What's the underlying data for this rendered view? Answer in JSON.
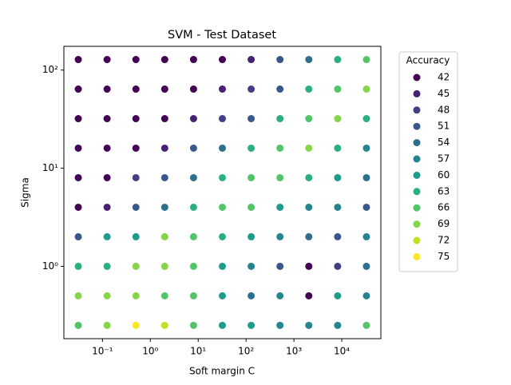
{
  "chart_data": {
    "type": "scatter",
    "title": "SVM - Test Dataset",
    "x_label": "Soft margin C",
    "y_label": "Sigma",
    "xscale": "log",
    "yscale": "log",
    "xlim": [
      0.015625,
      65536
    ],
    "ylim": [
      0.183,
      174.6
    ],
    "xticks": [
      {
        "value": 0.1,
        "label": "10⁻¹"
      },
      {
        "value": 1,
        "label": "10⁰"
      },
      {
        "value": 10,
        "label": "10¹"
      },
      {
        "value": 100,
        "label": "10²"
      },
      {
        "value": 1000,
        "label": "10³"
      },
      {
        "value": 10000,
        "label": "10⁴"
      }
    ],
    "yticks": [
      {
        "value": 1,
        "label": "10⁰"
      },
      {
        "value": 10,
        "label": "10¹"
      },
      {
        "value": 100,
        "label": "10²"
      }
    ],
    "legend_title": "Accuracy",
    "legend_position": "outside-right",
    "series": [
      {
        "name": "42",
        "color": "#440154",
        "x": [
          0.03125,
          0.125,
          0.5,
          2,
          8,
          32,
          0.03125,
          0.125,
          0.5,
          2,
          8,
          0.03125,
          0.125,
          0.5,
          2,
          0.03125,
          0.125,
          0.5,
          0.03125,
          0.125,
          0.03125,
          2048,
          2048
        ],
        "y": [
          128,
          128,
          128,
          128,
          128,
          128,
          64,
          64,
          64,
          64,
          64,
          32,
          32,
          32,
          32,
          16,
          16,
          16,
          8,
          8,
          4,
          1,
          0.5
        ]
      },
      {
        "name": "45",
        "color": "#482173",
        "x": [
          128,
          32,
          8,
          2,
          0.125
        ],
        "y": [
          128,
          64,
          32,
          16,
          4
        ]
      },
      {
        "name": "48",
        "color": "#433e85",
        "x": [
          128,
          32,
          0.5,
          8192
        ],
        "y": [
          64,
          32,
          8,
          1
        ]
      },
      {
        "name": "51",
        "color": "#38588c",
        "x": [
          512,
          512,
          128,
          8,
          2,
          0.5,
          32768,
          0.03125,
          8192,
          512
        ],
        "y": [
          128,
          64,
          32,
          16,
          8,
          4,
          4,
          2,
          2,
          1
        ]
      },
      {
        "name": "54",
        "color": "#2d708e",
        "x": [
          2048,
          32,
          8,
          32768,
          2,
          2048,
          32768,
          128
        ],
        "y": [
          128,
          16,
          8,
          8,
          4,
          2,
          1,
          0.5
        ]
      },
      {
        "name": "57",
        "color": "#25858e",
        "x": [
          32768,
          2048,
          8192,
          512,
          32768,
          128,
          512,
          32768,
          512,
          2048,
          8192
        ],
        "y": [
          16,
          4,
          4,
          2,
          2,
          1,
          0.5,
          0.5,
          0.25,
          0.25,
          0.25
        ]
      },
      {
        "name": "60",
        "color": "#1e9b8a",
        "x": [
          8192,
          512,
          0.125,
          0.5,
          128,
          32,
          32,
          8192,
          32,
          128
        ],
        "y": [
          8,
          4,
          2,
          2,
          2,
          1,
          0.5,
          0.5,
          0.25,
          0.25
        ]
      },
      {
        "name": "63",
        "color": "#2ab07f",
        "x": [
          8192,
          2048,
          512,
          32768,
          128,
          8192,
          32,
          2048,
          8,
          32,
          0.03125,
          0.125
        ],
        "y": [
          128,
          64,
          32,
          32,
          16,
          16,
          8,
          8,
          4,
          2,
          1,
          1
        ]
      },
      {
        "name": "66",
        "color": "#52c569",
        "x": [
          32768,
          8192,
          2048,
          512,
          128,
          512,
          32,
          128,
          8,
          8,
          2,
          8,
          0.03125,
          8,
          32768
        ],
        "y": [
          128,
          64,
          32,
          16,
          8,
          8,
          4,
          4,
          2,
          1,
          0.5,
          0.5,
          0.25,
          0.25,
          0.25
        ]
      },
      {
        "name": "69",
        "color": "#86d549",
        "x": [
          32768,
          8192,
          2048,
          2,
          0.5,
          2,
          0.03125,
          0.125,
          0.5,
          0.125
        ],
        "y": [
          64,
          32,
          16,
          2,
          1,
          1,
          0.5,
          0.5,
          0.5,
          0.25
        ]
      },
      {
        "name": "72",
        "color": "#c2df23",
        "x": [
          2
        ],
        "y": [
          0.25
        ]
      },
      {
        "name": "75",
        "color": "#fde725",
        "x": [
          0.5
        ],
        "y": [
          0.25
        ]
      }
    ]
  }
}
